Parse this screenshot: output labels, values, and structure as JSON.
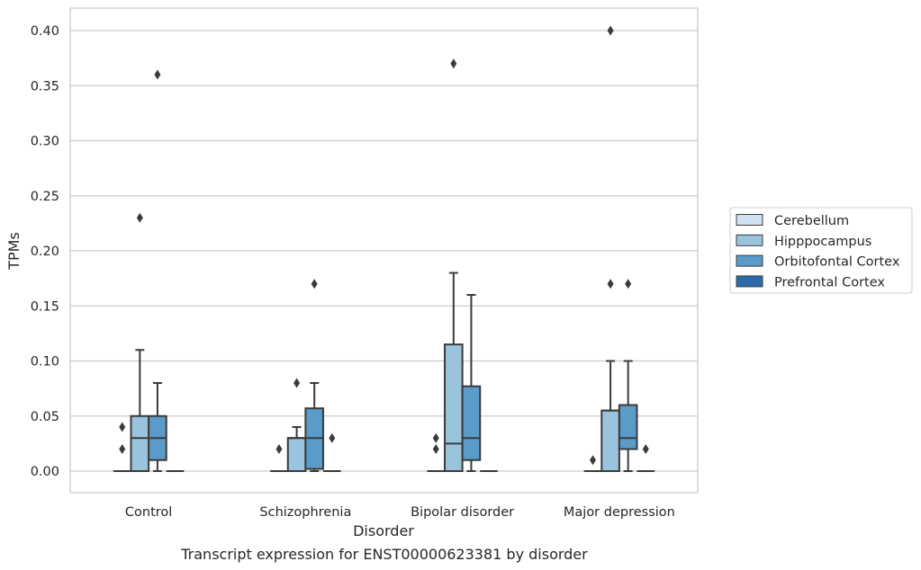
{
  "caption": "Transcript expression for ENST00000623381 by disorder",
  "chart_data": {
    "type": "box",
    "title": "",
    "xlabel": "Disorder",
    "ylabel": "TPMs",
    "ylim": [
      -0.02,
      0.42
    ],
    "yticks": [
      0.0,
      0.05,
      0.1,
      0.15,
      0.2,
      0.25,
      0.3,
      0.35,
      0.4
    ],
    "ytick_labels": [
      "0.00",
      "0.05",
      "0.10",
      "0.15",
      "0.20",
      "0.25",
      "0.30",
      "0.35",
      "0.40"
    ],
    "grid": "horizontal",
    "legend_position": "right",
    "categories": [
      "Control",
      "Schizophrenia",
      "Bipolar disorder",
      "Major depression"
    ],
    "series": [
      {
        "name": "Cerebellum",
        "color": "#d0e1f2",
        "boxes": [
          {
            "q1": 0,
            "median": 0,
            "q3": 0,
            "whisker_low": 0,
            "whisker_high": 0,
            "outliers": [
              0.02,
              0.04
            ]
          },
          {
            "q1": 0,
            "median": 0,
            "q3": 0,
            "whisker_low": 0,
            "whisker_high": 0,
            "outliers": [
              0.02
            ]
          },
          {
            "q1": 0,
            "median": 0,
            "q3": 0,
            "whisker_low": 0,
            "whisker_high": 0,
            "outliers": [
              0.02,
              0.03
            ]
          },
          {
            "q1": 0,
            "median": 0,
            "q3": 0,
            "whisker_low": 0,
            "whisker_high": 0,
            "outliers": [
              0.01
            ]
          }
        ]
      },
      {
        "name": "Hipppocampus",
        "color": "#9ac4dd",
        "boxes": [
          {
            "q1": 0,
            "median": 0.03,
            "q3": 0.05,
            "whisker_low": 0,
            "whisker_high": 0.11,
            "outliers": [
              0.23
            ]
          },
          {
            "q1": 0,
            "median": 0.03,
            "q3": 0.03,
            "whisker_low": 0,
            "whisker_high": 0.04,
            "outliers": [
              0.08
            ]
          },
          {
            "q1": 0,
            "median": 0.025,
            "q3": 0.115,
            "whisker_low": 0,
            "whisker_high": 0.18,
            "outliers": [
              0.37
            ]
          },
          {
            "q1": 0,
            "median": 0.055,
            "q3": 0.055,
            "whisker_low": 0,
            "whisker_high": 0.1,
            "outliers": [
              0.17,
              0.4
            ]
          }
        ]
      },
      {
        "name": "Orbitofontal Cortex",
        "color": "#5a9bc9",
        "boxes": [
          {
            "q1": 0.01,
            "median": 0.03,
            "q3": 0.05,
            "whisker_low": 0,
            "whisker_high": 0.08,
            "outliers": [
              0.36
            ]
          },
          {
            "q1": 0.002,
            "median": 0.03,
            "q3": 0.057,
            "whisker_low": 0,
            "whisker_high": 0.08,
            "outliers": [
              0.17
            ]
          },
          {
            "q1": 0.01,
            "median": 0.03,
            "q3": 0.077,
            "whisker_low": 0,
            "whisker_high": 0.16,
            "outliers": []
          },
          {
            "q1": 0.02,
            "median": 0.03,
            "q3": 0.06,
            "whisker_low": 0,
            "whisker_high": 0.1,
            "outliers": [
              0.17
            ]
          }
        ]
      },
      {
        "name": "Prefrontal Cortex",
        "color": "#2b6ca8",
        "boxes": [
          {
            "q1": 0,
            "median": 0,
            "q3": 0,
            "whisker_low": 0,
            "whisker_high": 0,
            "outliers": []
          },
          {
            "q1": 0,
            "median": 0,
            "q3": 0,
            "whisker_low": 0,
            "whisker_high": 0,
            "outliers": [
              0.03
            ]
          },
          {
            "q1": 0,
            "median": 0,
            "q3": 0,
            "whisker_low": 0,
            "whisker_high": 0,
            "outliers": []
          },
          {
            "q1": 0,
            "median": 0,
            "q3": 0,
            "whisker_low": 0,
            "whisker_high": 0,
            "outliers": [
              0.02
            ]
          }
        ]
      }
    ]
  }
}
